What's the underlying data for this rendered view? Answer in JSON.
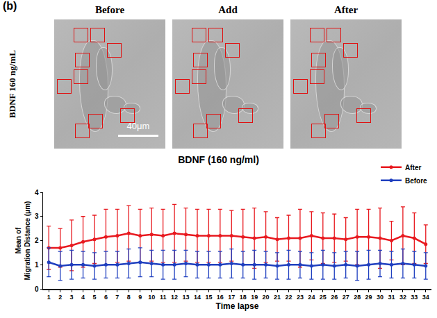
{
  "panel_label": "(b)",
  "images": {
    "row_label": "BDNF 160 ng/mL",
    "titles": [
      "Before",
      "Add",
      "After"
    ],
    "scale_bar": "40μm"
  },
  "chart_data": {
    "type": "line",
    "title": "BDNF (160 ng/ml)",
    "x_label": "Time lapse",
    "y_label": "Mean of\nMigration Distance (μm)",
    "x": [
      1,
      2,
      3,
      4,
      5,
      6,
      7,
      8,
      9,
      10,
      11,
      12,
      13,
      14,
      15,
      16,
      17,
      18,
      19,
      20,
      21,
      22,
      23,
      24,
      25,
      26,
      27,
      28,
      29,
      30,
      31,
      32,
      33,
      34
    ],
    "xlim": [
      0.5,
      34.5
    ],
    "xticks": [
      1,
      2,
      3,
      4,
      5,
      6,
      7,
      8,
      9,
      10,
      11,
      12,
      13,
      14,
      15,
      16,
      17,
      18,
      19,
      20,
      21,
      22,
      23,
      24,
      25,
      26,
      27,
      28,
      29,
      30,
      31,
      32,
      33,
      34
    ],
    "ylim": [
      0,
      4
    ],
    "yticks": [
      0,
      1,
      2,
      3,
      4
    ],
    "grid": false,
    "legend": "top right",
    "series": [
      {
        "name": "After",
        "color": "#e8191f",
        "marker": "circle",
        "line_style": "solid",
        "values": [
          1.7,
          1.7,
          1.8,
          1.95,
          2.05,
          2.15,
          2.2,
          2.3,
          2.2,
          2.25,
          2.2,
          2.3,
          2.25,
          2.2,
          2.2,
          2.2,
          2.2,
          2.15,
          2.1,
          2.15,
          2.05,
          2.1,
          2.1,
          2.2,
          2.1,
          2.1,
          2.05,
          2.15,
          2.15,
          2.1,
          2.0,
          2.2,
          2.1,
          1.85
        ],
        "error": [
          0.9,
          0.8,
          1.05,
          1.05,
          1.0,
          1.15,
          1.1,
          1.15,
          1.1,
          1.1,
          1.1,
          1.2,
          1.1,
          1.1,
          1.1,
          1.1,
          1.05,
          1.15,
          1.25,
          1.05,
          0.9,
          0.95,
          1.2,
          1.0,
          1.05,
          1.0,
          0.9,
          1.15,
          1.15,
          1.25,
          0.8,
          1.2,
          1.05,
          0.8
        ]
      },
      {
        "name": "Before",
        "color": "#1f3fbf",
        "marker": "circle",
        "line_style": "solid",
        "values": [
          1.1,
          0.95,
          1.0,
          1.0,
          0.95,
          1.0,
          1.0,
          1.05,
          1.1,
          1.05,
          1.0,
          1.0,
          1.05,
          1.0,
          1.0,
          1.0,
          1.05,
          1.0,
          1.0,
          1.0,
          0.95,
          1.0,
          1.0,
          0.95,
          1.0,
          0.95,
          1.0,
          0.95,
          1.0,
          1.05,
          1.0,
          1.05,
          1.0,
          0.95
        ],
        "error": [
          0.6,
          0.6,
          0.6,
          0.55,
          0.55,
          0.55,
          0.55,
          0.6,
          0.6,
          0.55,
          0.6,
          0.6,
          0.55,
          0.55,
          0.55,
          0.55,
          0.6,
          0.55,
          0.6,
          0.55,
          0.55,
          0.6,
          0.55,
          0.55,
          0.6,
          0.55,
          0.55,
          0.6,
          0.6,
          0.55,
          0.55,
          0.6,
          0.55,
          0.55
        ]
      }
    ]
  }
}
